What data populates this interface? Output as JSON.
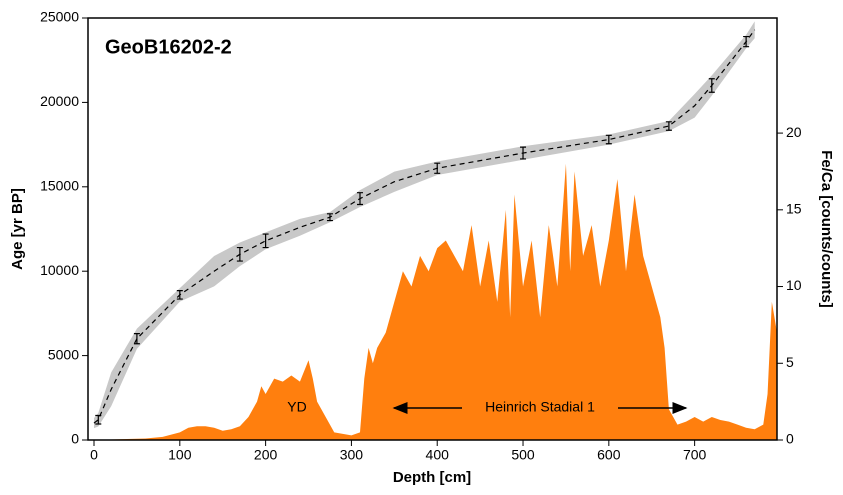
{
  "chart_data": {
    "type": "line",
    "title": "GeoB16202-2",
    "x_label": "Depth [cm]",
    "y_label": "Age [yr BP]",
    "y2_label": "Fe/Ca [counts/counts]",
    "annotations": [
      "YD",
      "Heinrich Stadial 1"
    ],
    "xlim": [
      -7,
      796
    ],
    "xticks": [
      0,
      100,
      200,
      300,
      400,
      500,
      600,
      700
    ],
    "ylim": [
      0,
      25000
    ],
    "yticks": [
      0,
      5000,
      10000,
      15000,
      20000,
      25000
    ],
    "y2lim": [
      0,
      27.5
    ],
    "y2ticks": [
      0,
      5,
      10,
      15,
      20
    ],
    "age_model": {
      "color": "#c8c8c8",
      "x": [
        0,
        5,
        20,
        50,
        100,
        140,
        170,
        200,
        240,
        275,
        310,
        350,
        400,
        500,
        600,
        670,
        700,
        720,
        760,
        770
      ],
      "values": [
        1000,
        1200,
        3000,
        6000,
        8600,
        10000,
        11000,
        11800,
        12600,
        13200,
        14300,
        15300,
        16100,
        17000,
        17800,
        18600,
        19800,
        21000,
        23600,
        24300
      ],
      "upper": [
        1300,
        1600,
        4000,
        6600,
        9000,
        10900,
        11700,
        12300,
        13100,
        13500,
        14800,
        15900,
        16500,
        17400,
        18100,
        18900,
        20500,
        21600,
        24000,
        24800
      ],
      "lower": [
        700,
        800,
        2000,
        5400,
        8200,
        9100,
        10300,
        11300,
        12100,
        12900,
        13800,
        14700,
        15700,
        16600,
        17500,
        18300,
        19100,
        20400,
        23200,
        23800
      ]
    },
    "dates": {
      "x": [
        5,
        50,
        100,
        170,
        200,
        275,
        310,
        400,
        500,
        600,
        670,
        720,
        760
      ],
      "values": [
        1200,
        6000,
        8600,
        11000,
        11800,
        13200,
        14300,
        16100,
        17000,
        17800,
        18600,
        21000,
        23600
      ],
      "errors": [
        250,
        300,
        250,
        400,
        400,
        200,
        350,
        300,
        350,
        250,
        250,
        400,
        300
      ]
    },
    "fe_ca": {
      "color": "#ff7f0e",
      "axis": "y2",
      "x": [
        0,
        60,
        80,
        100,
        110,
        120,
        130,
        140,
        150,
        160,
        170,
        180,
        190,
        195,
        200,
        210,
        220,
        230,
        240,
        250,
        255,
        260,
        270,
        280,
        290,
        300,
        310,
        315,
        320,
        325,
        330,
        340,
        350,
        360,
        370,
        380,
        390,
        400,
        410,
        420,
        430,
        440,
        450,
        460,
        470,
        480,
        485,
        490,
        500,
        510,
        520,
        530,
        540,
        550,
        555,
        560,
        570,
        580,
        590,
        600,
        610,
        620,
        630,
        640,
        650,
        660,
        665,
        670,
        680,
        690,
        700,
        710,
        720,
        730,
        740,
        750,
        760,
        770,
        780,
        785,
        790,
        796
      ],
      "values": [
        0,
        0.1,
        0.2,
        0.5,
        0.8,
        0.9,
        0.9,
        0.8,
        0.6,
        0.7,
        0.9,
        1.5,
        2.5,
        3.5,
        3,
        4,
        3.8,
        4.2,
        3.8,
        5.2,
        4,
        2.5,
        1.5,
        0.5,
        0.4,
        0.3,
        0.5,
        4,
        6,
        5,
        6,
        7,
        9,
        11,
        10,
        12,
        11,
        12.5,
        13,
        12,
        11,
        14,
        10,
        13,
        9,
        15,
        8,
        16,
        10,
        13,
        8,
        14,
        10,
        18,
        11,
        17.5,
        12,
        14,
        10,
        13,
        17,
        11,
        16,
        12,
        10,
        8,
        6,
        2,
        1,
        1.2,
        1.5,
        1.2,
        1.5,
        1.3,
        1.2,
        1,
        0.8,
        0.7,
        1,
        3,
        9,
        7
      ]
    }
  }
}
